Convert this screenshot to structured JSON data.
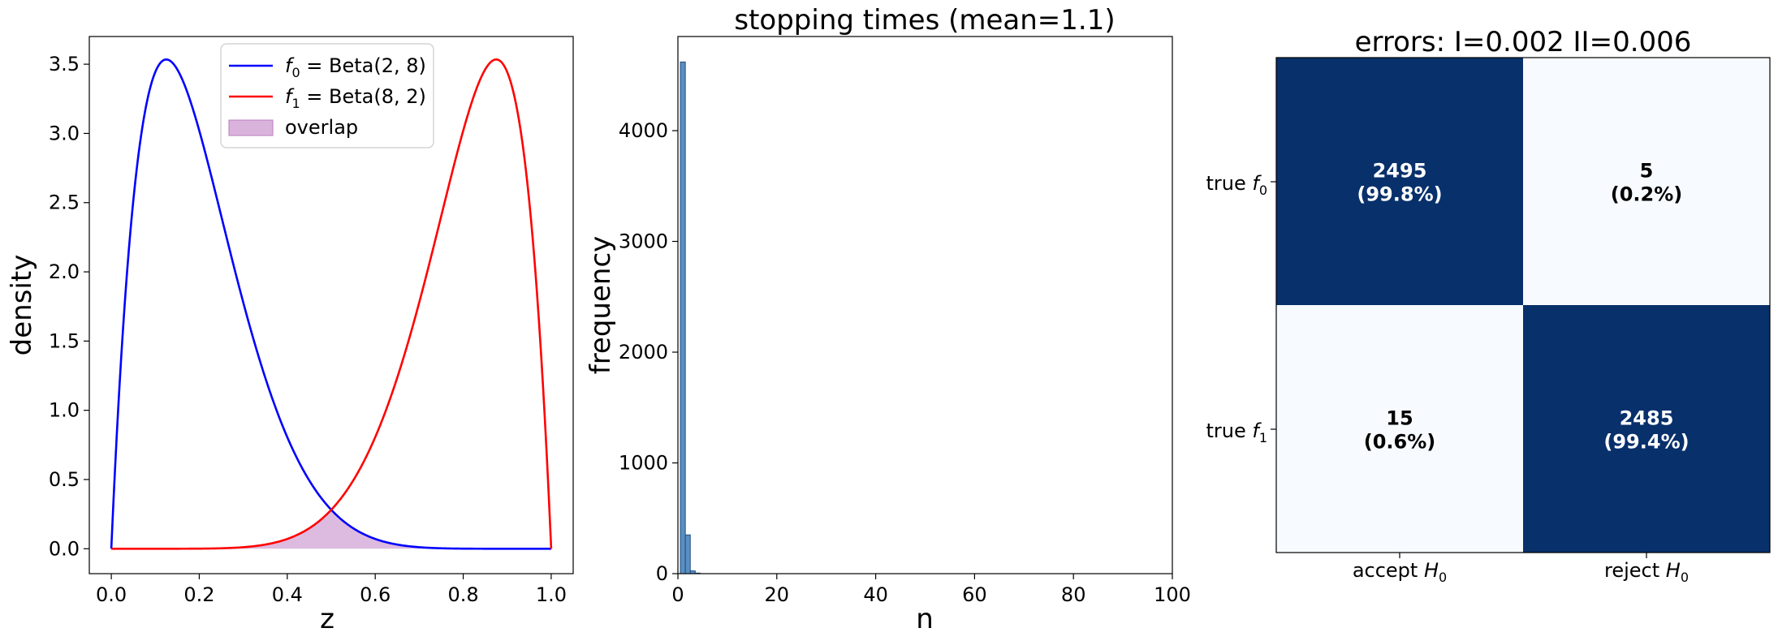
{
  "chart_data": [
    {
      "type": "line",
      "title": "",
      "xlabel": "z",
      "ylabel": "density",
      "xlim": [
        -0.05,
        1.05
      ],
      "ylim": [
        -0.18,
        3.7
      ],
      "xticks": [
        "0.0",
        "0.2",
        "0.4",
        "0.6",
        "0.8",
        "1.0"
      ],
      "yticks": [
        "0.0",
        "0.5",
        "1.0",
        "1.5",
        "2.0",
        "2.5",
        "3.0",
        "3.5"
      ],
      "grid": false,
      "legend_position": "top-center",
      "series": [
        {
          "name_prefix": "f",
          "name_sub": "0",
          "name_rest": " = Beta(2, 8)",
          "color": "#0000ff",
          "distribution": "beta",
          "a": 2,
          "b": 8,
          "peak": [
            0.125,
            3.53
          ]
        },
        {
          "name_prefix": "f",
          "name_sub": "1",
          "name_rest": " = Beta(8, 2)",
          "color": "#ff0000",
          "distribution": "beta",
          "a": 8,
          "b": 2,
          "peak": [
            0.875,
            3.53
          ]
        }
      ],
      "fill": {
        "name": "overlap",
        "color": "#d9b3dc",
        "edge_color": "#b97bbf",
        "description": "min(f0, f1)"
      }
    },
    {
      "type": "bar",
      "title": "stopping times (mean=1.1)",
      "xlabel": "n",
      "ylabel": "frequency",
      "xlim": [
        0,
        100
      ],
      "ylim": [
        0,
        4850
      ],
      "xticks": [
        "0",
        "20",
        "40",
        "60",
        "80",
        "100"
      ],
      "yticks": [
        "0",
        "1000",
        "2000",
        "3000",
        "4000"
      ],
      "grid": false,
      "bar_color": "#5a8fc3",
      "bar_edge": "#1e4e80",
      "bins": [
        {
          "x0": 0.5,
          "x1": 1.5,
          "count": 4620
        },
        {
          "x0": 1.5,
          "x1": 2.5,
          "count": 350
        },
        {
          "x0": 2.5,
          "x1": 3.5,
          "count": 25
        },
        {
          "x0": 3.5,
          "x1": 4.5,
          "count": 5
        }
      ]
    },
    {
      "type": "heatmap",
      "title": "errors: I=0.002 II=0.006",
      "row_labels": [
        {
          "prefix": "true ",
          "sym": "f",
          "sub": "1"
        },
        {
          "prefix": "true ",
          "sym": "f",
          "sub": "0"
        }
      ],
      "col_labels": [
        {
          "prefix": "accept ",
          "sym": "H",
          "sub": "0"
        },
        {
          "prefix": "reject ",
          "sym": "H",
          "sub": "0"
        }
      ],
      "values": [
        [
          2495,
          5
        ],
        [
          15,
          2485
        ]
      ],
      "cell_text": [
        [
          "2495",
          "(99.8%)",
          "5",
          "(0.2%)"
        ],
        [
          "15",
          "(0.6%)",
          "2485",
          "(99.4%)"
        ]
      ],
      "cells": [
        {
          "count": "2495",
          "pct": "(99.8%)"
        },
        {
          "count": "5",
          "pct": "(0.2%)"
        },
        {
          "count": "15",
          "pct": "(0.6%)"
        },
        {
          "count": "2485",
          "pct": "(99.4%)"
        }
      ],
      "colormap": {
        "low": "#f7fbff",
        "high": "#08306b",
        "text_light": "#ffffff",
        "text_dark": "#000000"
      }
    }
  ]
}
